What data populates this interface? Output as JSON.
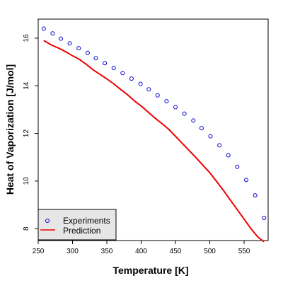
{
  "chart_data": {
    "type": "scatter",
    "xlabel": "Temperature [K]",
    "ylabel": "Heat of Vaporization [J/mol]",
    "xlim": [
      250,
      585
    ],
    "ylim": [
      7.5,
      16.8
    ],
    "x_ticks": [
      250,
      300,
      350,
      400,
      450,
      500,
      550
    ],
    "y_ticks": [
      8,
      10,
      12,
      14,
      16
    ],
    "grid": false,
    "legend_position": "bottom-left",
    "series": [
      {
        "name": "Experiments",
        "kind": "points",
        "color": "#0000cc",
        "x": [
          258,
          271,
          283,
          296,
          309,
          322,
          334,
          347,
          360,
          373,
          386,
          399,
          411,
          424,
          437,
          450,
          463,
          476,
          488,
          501,
          514,
          527,
          540,
          553,
          566,
          579
        ],
        "y": [
          16.4,
          16.2,
          15.98,
          15.78,
          15.58,
          15.38,
          15.16,
          14.95,
          14.75,
          14.53,
          14.3,
          14.08,
          13.85,
          13.6,
          13.35,
          13.1,
          12.83,
          12.54,
          12.22,
          11.88,
          11.5,
          11.08,
          10.6,
          10.05,
          9.4,
          8.45
        ]
      },
      {
        "name": "Prediction",
        "kind": "line",
        "color": "#ee0000",
        "x": [
          258,
          270,
          280,
          290,
          300,
          310,
          320,
          330,
          340,
          350,
          360,
          370,
          380,
          390,
          400,
          410,
          420,
          430,
          440,
          450,
          460,
          470,
          480,
          490,
          500,
          510,
          520,
          530,
          540,
          550,
          560,
          570,
          579
        ],
        "y": [
          15.9,
          15.7,
          15.58,
          15.43,
          15.26,
          15.11,
          14.9,
          14.67,
          14.48,
          14.29,
          14.08,
          13.85,
          13.63,
          13.37,
          13.15,
          12.9,
          12.65,
          12.42,
          12.18,
          11.88,
          11.58,
          11.28,
          10.98,
          10.66,
          10.35,
          9.98,
          9.6,
          9.2,
          8.8,
          8.4,
          8.0,
          7.65,
          7.45
        ]
      }
    ]
  }
}
